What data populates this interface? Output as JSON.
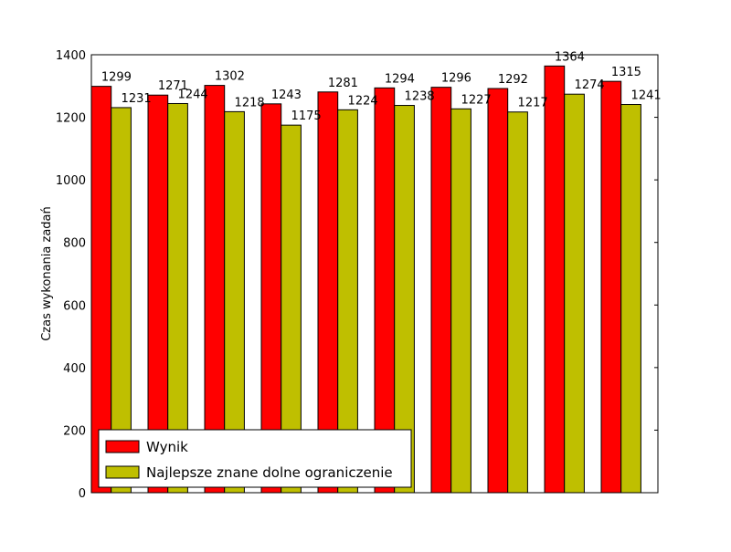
{
  "chart_data": {
    "type": "bar",
    "title": "",
    "xlabel": "",
    "ylabel": "Czas wykonania zadań",
    "ylim": [
      0,
      1400
    ],
    "yticks": [
      0,
      200,
      400,
      600,
      800,
      1000,
      1200,
      1400
    ],
    "grid": false,
    "legend_position": "bottom-left",
    "categories": [
      "",
      "",
      "",
      "",
      "",
      "",
      "",
      "",
      "",
      ""
    ],
    "series": [
      {
        "name": "Wynik",
        "color": "#ff0000",
        "values": [
          1299,
          1271,
          1302,
          1243,
          1281,
          1294,
          1296,
          1292,
          1364,
          1315
        ]
      },
      {
        "name": "Najlepsze znane dolne ograniczenie",
        "color": "#bfbf00",
        "values": [
          1231,
          1244,
          1218,
          1175,
          1224,
          1238,
          1227,
          1217,
          1274,
          1241
        ]
      }
    ]
  }
}
